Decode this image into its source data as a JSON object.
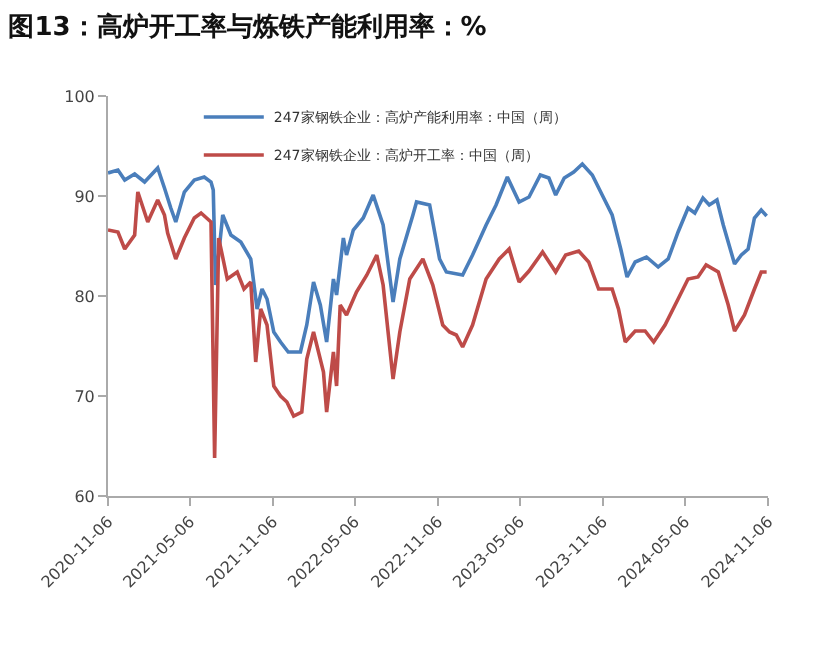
{
  "chart_data": {
    "type": "line",
    "title": "图13：高炉开工率与炼铁产能利用率：%",
    "xlim": [
      "2020-11-06",
      "2024-11-06"
    ],
    "xticks": [
      {
        "value": "2020-11-06",
        "label": "2020-11-06"
      },
      {
        "value": "2021-05-06",
        "label": "2021-05-06"
      },
      {
        "value": "2021-11-06",
        "label": "2021-11-06"
      },
      {
        "value": "2022-05-06",
        "label": "2022-05-06"
      },
      {
        "value": "2022-11-06",
        "label": "2022-11-06"
      },
      {
        "value": "2023-05-06",
        "label": "2023-05-06"
      },
      {
        "value": "2023-11-06",
        "label": "2023-11-06"
      },
      {
        "value": "2024-05-06",
        "label": "2024-05-06"
      },
      {
        "value": "2024-11-06",
        "label": "2024-11-06"
      }
    ],
    "ylim": [
      60,
      100
    ],
    "yticks": [
      60,
      70,
      80,
      90,
      100
    ],
    "grid": false,
    "legend": "top",
    "marker": "none",
    "line_style": "solid",
    "series": [
      {
        "name": "247家钢铁企业：高炉产能利用率：中国（周）",
        "color": "#4a7ebb",
        "x": [
          "2020-11-06",
          "2020-11-28",
          "2020-12-13",
          "2021-01-04",
          "2021-01-26",
          "2021-02-24",
          "2021-03-11",
          "2021-03-25",
          "2021-04-05",
          "2021-04-24",
          "2021-05-16",
          "2021-06-07",
          "2021-06-22",
          "2021-06-27",
          "2021-07-02",
          "2021-07-18",
          "2021-08-05",
          "2021-08-27",
          "2021-09-18",
          "2021-10-02",
          "2021-10-13",
          "2021-10-24",
          "2021-11-08",
          "2021-11-23",
          "2021-12-10",
          "2022-01-06",
          "2022-01-20",
          "2022-02-04",
          "2022-02-19",
          "2022-03-05",
          "2022-03-20",
          "2022-03-27",
          "2022-04-11",
          "2022-04-18",
          "2022-05-03",
          "2022-05-25",
          "2022-06-16",
          "2022-07-08",
          "2022-07-30",
          "2022-08-14",
          "2022-09-12",
          "2022-09-20",
          "2022-10-19",
          "2022-11-10",
          "2022-11-25",
          "2022-12-31",
          "2023-01-22",
          "2023-02-21",
          "2023-03-15",
          "2023-04-09",
          "2023-05-05",
          "2023-05-27",
          "2023-06-21",
          "2023-07-10",
          "2023-07-25",
          "2023-08-13",
          "2023-09-03",
          "2023-09-22",
          "2023-10-14",
          "2023-11-05",
          "2023-11-27",
          "2023-12-16",
          "2023-12-30",
          "2024-01-17",
          "2024-02-11",
          "2024-03-08",
          "2024-03-30",
          "2024-04-21",
          "2024-05-13",
          "2024-05-28",
          "2024-06-15",
          "2024-06-29",
          "2024-07-16",
          "2024-07-30",
          "2024-08-24",
          "2024-09-08",
          "2024-09-23",
          "2024-10-07",
          "2024-10-22",
          "2024-11-03"
        ],
        "values": [
          92.3,
          92.6,
          91.6,
          92.2,
          91.4,
          92.8,
          90.8,
          88.8,
          87.4,
          90.4,
          91.6,
          91.9,
          91.4,
          90.6,
          81.1,
          88.1,
          86.1,
          85.4,
          83.7,
          78.7,
          80.7,
          79.7,
          76.4,
          75.4,
          74.4,
          74.4,
          77.1,
          81.4,
          79.1,
          75.4,
          81.7,
          80.1,
          85.8,
          84.1,
          86.6,
          87.8,
          90.1,
          87.1,
          79.4,
          83.7,
          88.1,
          89.4,
          89.1,
          83.7,
          82.4,
          82.1,
          84.1,
          87.1,
          89.1,
          91.9,
          89.4,
          89.9,
          92.1,
          91.8,
          90.1,
          91.8,
          92.4,
          93.2,
          92.1,
          90.1,
          88.1,
          84.7,
          81.9,
          83.4,
          83.9,
          82.9,
          83.7,
          86.4,
          88.8,
          88.3,
          89.8,
          89.1,
          89.6,
          87.1,
          83.2,
          84.1,
          84.7,
          87.8,
          88.6,
          88.0
        ]
      },
      {
        "name": "247家钢铁企业：高炉开工率：中国（周）",
        "color": "#be4b48",
        "x": [
          "2020-11-06",
          "2020-11-28",
          "2020-12-13",
          "2021-01-04",
          "2021-01-11",
          "2021-02-02",
          "2021-02-24",
          "2021-03-11",
          "2021-03-18",
          "2021-04-05",
          "2021-04-24",
          "2021-05-16",
          "2021-05-31",
          "2021-06-22",
          "2021-06-30",
          "2021-07-09",
          "2021-07-28",
          "2021-08-19",
          "2021-09-03",
          "2021-09-18",
          "2021-09-29",
          "2021-10-10",
          "2021-10-24",
          "2021-11-08",
          "2021-11-23",
          "2021-12-07",
          "2021-12-22",
          "2022-01-09",
          "2022-01-20",
          "2022-02-04",
          "2022-02-26",
          "2022-03-05",
          "2022-03-20",
          "2022-03-27",
          "2022-04-04",
          "2022-04-18",
          "2022-05-10",
          "2022-06-02",
          "2022-06-24",
          "2022-07-08",
          "2022-07-30",
          "2022-08-14",
          "2022-09-05",
          "2022-10-04",
          "2022-10-26",
          "2022-11-17",
          "2022-12-02",
          "2022-12-17",
          "2022-12-31",
          "2023-01-22",
          "2023-02-21",
          "2023-03-22",
          "2023-04-13",
          "2023-05-05",
          "2023-05-27",
          "2023-06-26",
          "2023-07-25",
          "2023-08-16",
          "2023-09-14",
          "2023-10-06",
          "2023-10-28",
          "2023-11-27",
          "2023-12-11",
          "2023-12-26",
          "2024-01-17",
          "2024-02-08",
          "2024-02-27",
          "2024-03-23",
          "2024-04-21",
          "2024-05-13",
          "2024-06-04",
          "2024-06-22",
          "2024-07-19",
          "2024-08-10",
          "2024-08-24",
          "2024-09-15",
          "2024-10-07",
          "2024-10-22",
          "2024-11-03"
        ],
        "values": [
          86.6,
          86.4,
          84.7,
          86.1,
          90.4,
          87.4,
          89.6,
          88.1,
          86.3,
          83.7,
          85.8,
          87.8,
          88.3,
          87.4,
          63.8,
          85.8,
          81.7,
          82.4,
          80.7,
          81.4,
          73.4,
          78.7,
          77.1,
          71.0,
          70.0,
          69.4,
          68.0,
          68.4,
          73.7,
          76.4,
          72.4,
          68.4,
          74.4,
          71.0,
          79.1,
          78.1,
          80.4,
          82.1,
          84.1,
          81.1,
          71.7,
          76.4,
          81.7,
          83.7,
          81.1,
          77.1,
          76.4,
          76.1,
          74.9,
          77.1,
          81.7,
          83.7,
          84.7,
          81.4,
          82.5,
          84.4,
          82.4,
          84.1,
          84.5,
          83.4,
          80.7,
          80.7,
          78.7,
          75.4,
          76.5,
          76.5,
          75.4,
          77.1,
          79.7,
          81.7,
          81.9,
          83.1,
          82.4,
          79.1,
          76.5,
          78.1,
          80.7,
          82.4,
          82.4
        ]
      }
    ]
  }
}
